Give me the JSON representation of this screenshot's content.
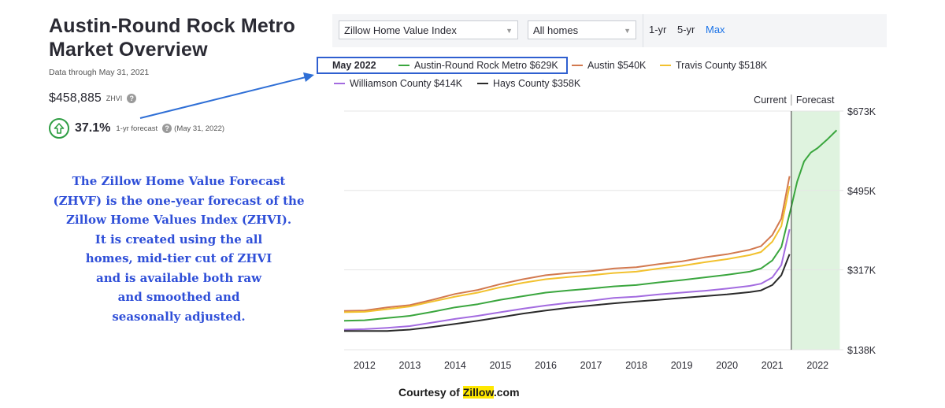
{
  "header": {
    "title_line1": "Austin-Round Rock Metro",
    "title_line2": "Market Overview",
    "data_through": "Data through May 31, 2021",
    "zhvi_value": "$458,885",
    "zhvi_label": "ZHVI",
    "forecast_pct": "37.1%",
    "forecast_label": "1-yr forecast",
    "forecast_date": "(May 31, 2022)"
  },
  "annotation": {
    "lines": [
      "The Zillow Home Value Forecast",
      "(ZHVF) is the one-year forecast of the",
      "Zillow Home Values Index (ZHVI).",
      "It is created using the all",
      "homes, mid-tier cut of ZHVI",
      "and is available both raw",
      "and smoothed and",
      "seasonally adjusted."
    ]
  },
  "toolbar": {
    "index_select": "Zillow Home Value Index",
    "homes_select": "All homes",
    "range_options": [
      "1-yr",
      "5-yr",
      "Max"
    ],
    "range_selected": "Max"
  },
  "legend": {
    "date": "May 2022",
    "items": [
      {
        "label": "Austin-Round Rock Metro $629K",
        "color": "#3aa63e"
      },
      {
        "label": "Austin $540K",
        "color": "#d2794f"
      },
      {
        "label": "Travis County $518K",
        "color": "#f2c12e"
      },
      {
        "label": "Williamson County $414K",
        "color": "#a36be0"
      },
      {
        "label": "Hays County $358K",
        "color": "#2a2a2a"
      }
    ]
  },
  "chart_labels": {
    "current": "Current",
    "forecast": "Forecast"
  },
  "credit": {
    "prefix": "Courtesy of ",
    "highlight": "Zillow",
    "suffix": ".com"
  },
  "chart_data": {
    "type": "line",
    "x_unit": "year",
    "xlim": [
      2011.55,
      2022.5
    ],
    "ylim": [
      138000,
      673000
    ],
    "y_ticks": [
      "$673K",
      "$495K",
      "$317K",
      "$138K"
    ],
    "y_tick_values": [
      673000,
      495000,
      317000,
      138000
    ],
    "x_ticks": [
      "2012",
      "2013",
      "2014",
      "2015",
      "2016",
      "2017",
      "2018",
      "2019",
      "2020",
      "2021",
      "2022"
    ],
    "x_tick_values": [
      2012,
      2013,
      2014,
      2015,
      2016,
      2017,
      2018,
      2019,
      2020,
      2021,
      2022
    ],
    "current_x": 2021.42,
    "forecast_region": [
      2021.42,
      2022.42
    ],
    "grid": true,
    "series": [
      {
        "name": "Austin",
        "color": "#d2794f",
        "x": [
          2011.55,
          2012,
          2012.5,
          2013,
          2013.5,
          2014,
          2014.5,
          2015,
          2015.5,
          2016,
          2016.5,
          2017,
          2017.5,
          2018,
          2018.5,
          2019,
          2019.5,
          2020,
          2020.5,
          2020.75,
          2021,
          2021.2,
          2021.38
        ],
        "y": [
          225000,
          226000,
          233000,
          238000,
          250000,
          263000,
          272000,
          285000,
          296000,
          305000,
          310000,
          314000,
          320000,
          323000,
          330000,
          336000,
          345000,
          352000,
          362000,
          370000,
          395000,
          432000,
          527000
        ]
      },
      {
        "name": "Travis County",
        "color": "#f2c12e",
        "x": [
          2011.55,
          2012,
          2012.5,
          2013,
          2013.5,
          2014,
          2014.5,
          2015,
          2015.5,
          2016,
          2016.5,
          2017,
          2017.5,
          2018,
          2018.5,
          2019,
          2019.5,
          2020,
          2020.5,
          2020.75,
          2021,
          2021.2,
          2021.38
        ],
        "y": [
          222000,
          223000,
          229000,
          235000,
          246000,
          257000,
          266000,
          278000,
          288000,
          296000,
          301000,
          305000,
          310000,
          313000,
          320000,
          326000,
          334000,
          341000,
          350000,
          357000,
          380000,
          415000,
          505000
        ]
      },
      {
        "name": "Austin-Round Rock Metro",
        "color": "#3aa63e",
        "x": [
          2011.55,
          2012,
          2012.5,
          2013,
          2013.5,
          2014,
          2014.5,
          2015,
          2015.5,
          2016,
          2016.5,
          2017,
          2017.5,
          2018,
          2018.5,
          2019,
          2019.5,
          2020,
          2020.5,
          2020.75,
          2021,
          2021.2,
          2021.42,
          2021.55,
          2021.7,
          2021.85,
          2022,
          2022.2,
          2022.42
        ],
        "y": [
          203000,
          204000,
          209000,
          214000,
          223000,
          233000,
          240000,
          250000,
          258000,
          266000,
          271000,
          275000,
          280000,
          283000,
          289000,
          294000,
          300000,
          306000,
          313000,
          320000,
          338000,
          368000,
          459000,
          515000,
          560000,
          580000,
          590000,
          608000,
          630000
        ]
      },
      {
        "name": "Williamson County",
        "color": "#a36be0",
        "x": [
          2011.55,
          2012,
          2012.5,
          2013,
          2013.5,
          2014,
          2014.5,
          2015,
          2015.5,
          2016,
          2016.5,
          2017,
          2017.5,
          2018,
          2018.5,
          2019,
          2019.5,
          2020,
          2020.5,
          2020.75,
          2021,
          2021.2,
          2021.38
        ],
        "y": [
          183000,
          184000,
          187000,
          191000,
          199000,
          207000,
          214000,
          222000,
          230000,
          237000,
          243000,
          248000,
          254000,
          257000,
          262000,
          266000,
          270000,
          275000,
          281000,
          286000,
          300000,
          328000,
          408000
        ]
      },
      {
        "name": "Hays County",
        "color": "#2a2a2a",
        "x": [
          2011.55,
          2012,
          2012.5,
          2013,
          2013.5,
          2014,
          2014.5,
          2015,
          2015.5,
          2016,
          2016.5,
          2017,
          2017.5,
          2018,
          2018.5,
          2019,
          2019.5,
          2020,
          2020.5,
          2020.75,
          2021,
          2021.2,
          2021.38
        ],
        "y": [
          180000,
          180000,
          180000,
          183000,
          189000,
          196000,
          203000,
          211000,
          219000,
          226000,
          232000,
          237000,
          242000,
          246000,
          250000,
          254000,
          258000,
          262000,
          267000,
          271000,
          283000,
          305000,
          352000
        ]
      }
    ]
  }
}
